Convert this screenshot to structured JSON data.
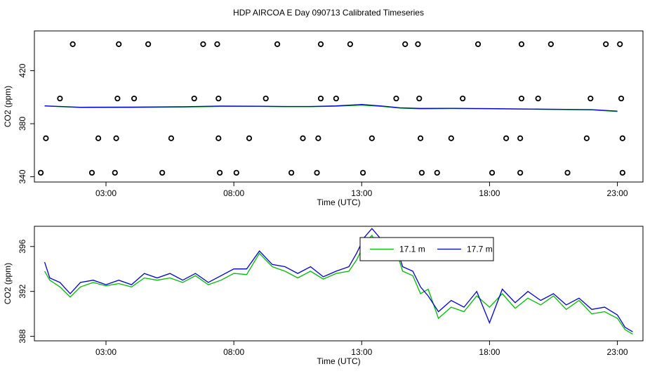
{
  "title": "HDP AIRCOA E  Day 090713  Calibrated Timeseries",
  "chart_data": [
    {
      "type": "scatter",
      "xlabel": "Time (UTC)",
      "ylabel": "CO2 (ppm)",
      "xlim": [
        0.2,
        24.0
      ],
      "ylim": [
        336,
        450
      ],
      "x_ticks": [
        3,
        8,
        13,
        18,
        23
      ],
      "x_tick_labels": [
        "03:00",
        "08:00",
        "13:00",
        "18:00",
        "23:00"
      ],
      "y_ticks": [
        340,
        380,
        420
      ],
      "y_tick_labels": [
        "340",
        "380",
        "420"
      ],
      "grid": false,
      "legend": "none",
      "series": [
        {
          "marker": "open-circle",
          "color": "#000000",
          "points": [
            [
              1.7,
              440
            ],
            [
              3.5,
              440
            ],
            [
              4.65,
              440
            ],
            [
              6.8,
              440
            ],
            [
              7.35,
              440
            ],
            [
              9.7,
              440
            ],
            [
              11.4,
              440
            ],
            [
              12.55,
              440
            ],
            [
              14.7,
              440
            ],
            [
              15.2,
              440
            ],
            [
              17.55,
              440
            ],
            [
              19.25,
              440
            ],
            [
              20.4,
              440
            ],
            [
              22.55,
              440
            ],
            [
              23.1,
              440
            ],
            [
              1.2,
              399
            ],
            [
              3.45,
              399
            ],
            [
              4.1,
              399
            ],
            [
              6.45,
              399
            ],
            [
              7.4,
              399
            ],
            [
              9.25,
              399
            ],
            [
              11.4,
              399
            ],
            [
              12.0,
              399
            ],
            [
              14.35,
              399
            ],
            [
              15.25,
              399
            ],
            [
              16.95,
              399
            ],
            [
              19.25,
              399
            ],
            [
              19.9,
              399
            ],
            [
              21.95,
              399
            ],
            [
              23.15,
              399
            ],
            [
              0.65,
              369
            ],
            [
              2.7,
              369
            ],
            [
              3.4,
              369
            ],
            [
              5.55,
              369
            ],
            [
              7.4,
              369
            ],
            [
              8.6,
              369
            ],
            [
              10.7,
              369
            ],
            [
              11.3,
              369
            ],
            [
              13.4,
              369
            ],
            [
              15.3,
              369
            ],
            [
              16.5,
              369
            ],
            [
              18.65,
              369
            ],
            [
              19.2,
              369
            ],
            [
              21.8,
              369
            ],
            [
              23.2,
              369
            ],
            [
              0.45,
              343
            ],
            [
              2.45,
              343
            ],
            [
              3.35,
              343
            ],
            [
              5.2,
              343
            ],
            [
              7.45,
              343
            ],
            [
              8.1,
              343
            ],
            [
              10.25,
              343
            ],
            [
              11.25,
              343
            ],
            [
              13.05,
              343
            ],
            [
              15.35,
              343
            ],
            [
              15.95,
              343
            ],
            [
              18.1,
              343
            ],
            [
              19.2,
              343
            ],
            [
              21.05,
              343
            ],
            [
              23.2,
              343
            ]
          ]
        },
        {
          "name": "17.1 m",
          "color": "#00bb00",
          "points": [
            [
              0.6,
              393.3
            ],
            [
              2.0,
              392.2
            ],
            [
              4.0,
              392.2
            ],
            [
              6.0,
              392.6
            ],
            [
              7.5,
              393.0
            ],
            [
              9.0,
              393.0
            ],
            [
              10.0,
              392.8
            ],
            [
              11.0,
              392.8
            ],
            [
              12.0,
              393.2
            ],
            [
              13.0,
              394.0
            ],
            [
              13.8,
              393.0
            ],
            [
              14.5,
              391.8
            ],
            [
              15.3,
              391.2
            ],
            [
              16.5,
              391.4
            ],
            [
              18.0,
              391.2
            ],
            [
              20.0,
              390.8
            ],
            [
              22.0,
              390.4
            ],
            [
              23.0,
              389.2
            ]
          ]
        },
        {
          "name": "17.7 m",
          "color": "#0000cc",
          "points": [
            [
              0.6,
              393.5
            ],
            [
              2.0,
              392.4
            ],
            [
              4.0,
              392.5
            ],
            [
              6.0,
              392.8
            ],
            [
              7.5,
              393.3
            ],
            [
              9.0,
              393.2
            ],
            [
              10.0,
              393.0
            ],
            [
              11.0,
              393.0
            ],
            [
              12.0,
              393.4
            ],
            [
              13.0,
              394.5
            ],
            [
              13.8,
              393.3
            ],
            [
              14.5,
              392.0
            ],
            [
              15.3,
              391.5
            ],
            [
              16.5,
              391.6
            ],
            [
              18.0,
              391.4
            ],
            [
              20.0,
              391.0
            ],
            [
              22.0,
              390.6
            ],
            [
              23.0,
              389.5
            ]
          ]
        }
      ]
    },
    {
      "type": "line",
      "xlabel": "Time (UTC)",
      "ylabel": "CO2 (ppm)",
      "xlim": [
        0.2,
        24.0
      ],
      "ylim": [
        387.6,
        397.8
      ],
      "x_ticks": [
        3,
        8,
        13,
        18,
        23
      ],
      "x_tick_labels": [
        "03:00",
        "08:00",
        "13:00",
        "18:00",
        "23:00"
      ],
      "y_ticks": [
        388,
        392,
        396
      ],
      "y_tick_labels": [
        "388",
        "392",
        "396"
      ],
      "grid": false,
      "legend": "top-center",
      "series": [
        {
          "name": "17.1 m",
          "color": "#00bb00",
          "points": [
            [
              0.6,
              393.8
            ],
            [
              0.8,
              393.0
            ],
            [
              1.2,
              392.4
            ],
            [
              1.6,
              391.5
            ],
            [
              2.0,
              392.4
            ],
            [
              2.5,
              392.8
            ],
            [
              3.0,
              392.5
            ],
            [
              3.5,
              392.7
            ],
            [
              4.0,
              392.4
            ],
            [
              4.5,
              393.2
            ],
            [
              5.0,
              393.0
            ],
            [
              5.5,
              393.2
            ],
            [
              6.0,
              392.8
            ],
            [
              6.5,
              393.4
            ],
            [
              7.0,
              392.6
            ],
            [
              7.5,
              393.0
            ],
            [
              8.0,
              393.6
            ],
            [
              8.5,
              393.5
            ],
            [
              9.0,
              395.4
            ],
            [
              9.5,
              394.2
            ],
            [
              10.0,
              393.8
            ],
            [
              10.5,
              393.2
            ],
            [
              11.0,
              393.8
            ],
            [
              11.5,
              393.1
            ],
            [
              12.0,
              393.6
            ],
            [
              12.5,
              393.8
            ],
            [
              12.8,
              394.8
            ],
            [
              13.1,
              396.2
            ],
            [
              13.4,
              397.0
            ],
            [
              13.7,
              395.6
            ],
            [
              14.0,
              394.8
            ],
            [
              14.3,
              396.0
            ],
            [
              14.6,
              393.8
            ],
            [
              15.0,
              393.4
            ],
            [
              15.3,
              391.8
            ],
            [
              15.6,
              392.2
            ],
            [
              16.0,
              389.6
            ],
            [
              16.5,
              390.6
            ],
            [
              17.0,
              390.2
            ],
            [
              17.5,
              391.6
            ],
            [
              18.0,
              390.6
            ],
            [
              18.5,
              391.8
            ],
            [
              19.0,
              390.5
            ],
            [
              19.5,
              391.4
            ],
            [
              20.0,
              390.8
            ],
            [
              20.5,
              391.6
            ],
            [
              21.0,
              390.4
            ],
            [
              21.5,
              391.2
            ],
            [
              22.0,
              390.0
            ],
            [
              22.5,
              390.2
            ],
            [
              23.0,
              389.6
            ],
            [
              23.3,
              388.6
            ],
            [
              23.6,
              388.2
            ]
          ]
        },
        {
          "name": "17.7 m",
          "color": "#0000cc",
          "points": [
            [
              0.6,
              394.6
            ],
            [
              0.8,
              393.2
            ],
            [
              1.2,
              392.8
            ],
            [
              1.6,
              391.8
            ],
            [
              2.0,
              392.8
            ],
            [
              2.5,
              393.0
            ],
            [
              3.0,
              392.6
            ],
            [
              3.5,
              393.0
            ],
            [
              4.0,
              392.6
            ],
            [
              4.5,
              393.6
            ],
            [
              5.0,
              393.2
            ],
            [
              5.5,
              393.6
            ],
            [
              6.0,
              393.0
            ],
            [
              6.5,
              393.6
            ],
            [
              7.0,
              392.8
            ],
            [
              7.5,
              393.4
            ],
            [
              8.0,
              394.0
            ],
            [
              8.5,
              394.0
            ],
            [
              9.0,
              395.6
            ],
            [
              9.5,
              394.4
            ],
            [
              10.0,
              394.2
            ],
            [
              10.5,
              393.6
            ],
            [
              11.0,
              394.2
            ],
            [
              11.5,
              393.3
            ],
            [
              12.0,
              393.8
            ],
            [
              12.5,
              394.2
            ],
            [
              12.8,
              395.4
            ],
            [
              13.1,
              396.8
            ],
            [
              13.4,
              397.6
            ],
            [
              13.7,
              396.8
            ],
            [
              14.0,
              395.2
            ],
            [
              14.3,
              396.4
            ],
            [
              14.6,
              394.2
            ],
            [
              15.0,
              393.8
            ],
            [
              15.3,
              392.4
            ],
            [
              15.6,
              391.6
            ],
            [
              16.0,
              390.2
            ],
            [
              16.5,
              391.2
            ],
            [
              17.0,
              390.6
            ],
            [
              17.5,
              392.0
            ],
            [
              18.0,
              389.2
            ],
            [
              18.5,
              392.2
            ],
            [
              19.0,
              391.0
            ],
            [
              19.5,
              392.0
            ],
            [
              20.0,
              391.2
            ],
            [
              20.5,
              391.8
            ],
            [
              21.0,
              390.8
            ],
            [
              21.5,
              391.4
            ],
            [
              22.0,
              390.4
            ],
            [
              22.5,
              390.6
            ],
            [
              23.0,
              389.9
            ],
            [
              23.3,
              388.8
            ],
            [
              23.6,
              388.4
            ]
          ]
        }
      ]
    }
  ]
}
